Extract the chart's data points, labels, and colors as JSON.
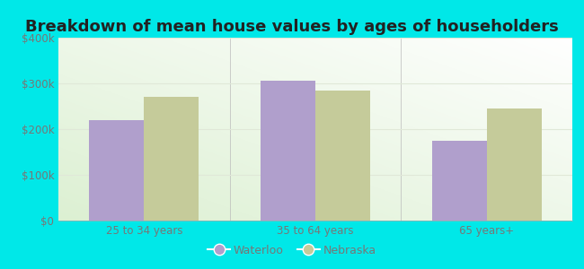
{
  "title": "Breakdown of mean house values by ages of householders",
  "categories": [
    "25 to 34 years",
    "35 to 64 years",
    "65 years+"
  ],
  "waterloo_values": [
    220000,
    305000,
    175000
  ],
  "nebraska_values": [
    270000,
    285000,
    245000
  ],
  "waterloo_color": "#b09fcc",
  "nebraska_color": "#c5cb9a",
  "ylim": [
    0,
    400000
  ],
  "yticks": [
    0,
    100000,
    200000,
    300000,
    400000
  ],
  "ytick_labels": [
    "$0",
    "$100k",
    "$200k",
    "$300k",
    "$400k"
  ],
  "bar_width": 0.32,
  "background_color": "#00e8e8",
  "grid_color": "#e0e8d8",
  "title_fontsize": 13,
  "tick_fontsize": 8.5,
  "legend_fontsize": 9,
  "waterloo_label": "Waterloo",
  "nebraska_label": "Nebraska",
  "tick_color": "#777777",
  "title_color": "#222222"
}
